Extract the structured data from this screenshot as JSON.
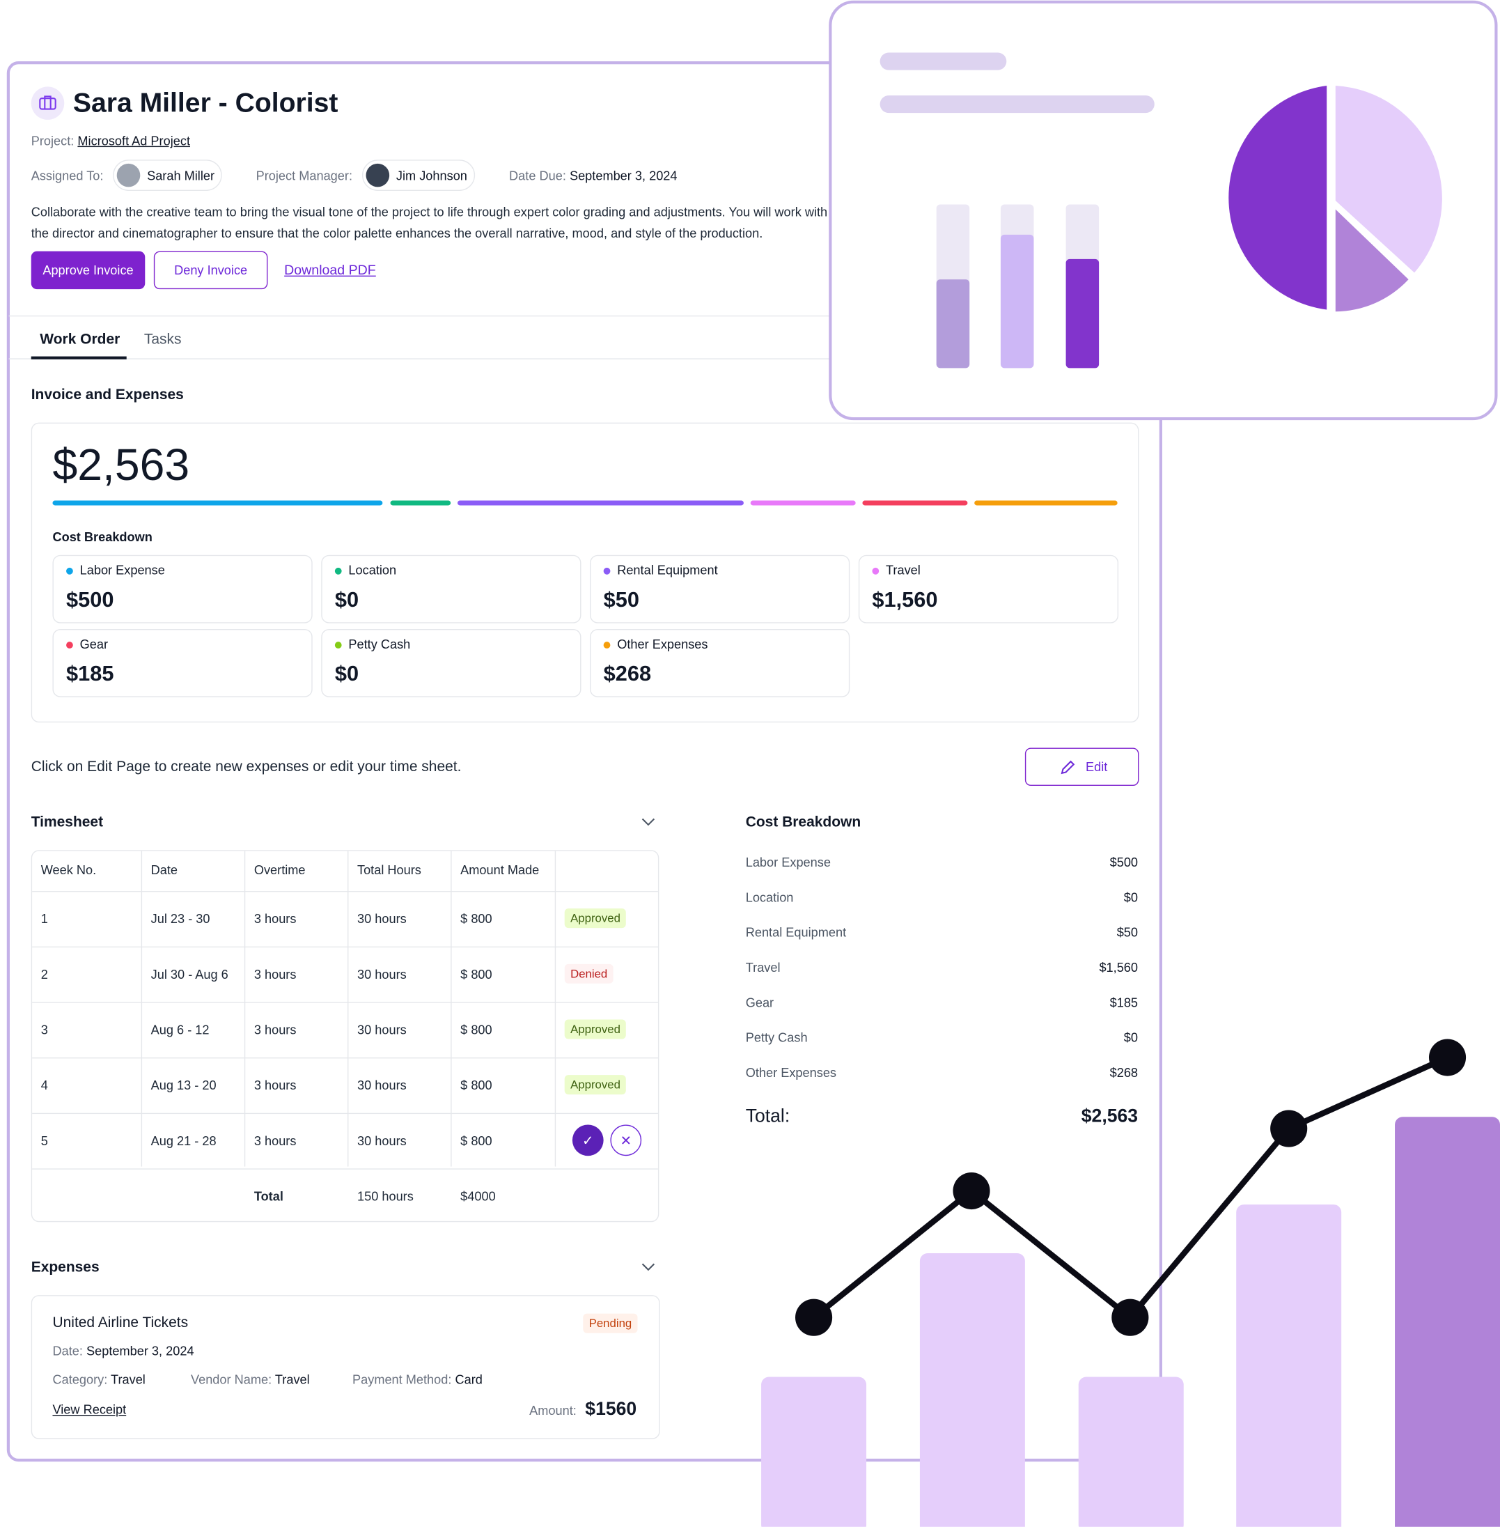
{
  "header": {
    "title": "Sara Miller - Colorist",
    "project_label": "Project:",
    "project": "Microsoft Ad Project",
    "assigned_label": "Assigned To:",
    "assigned": "Sarah Miller",
    "manager_label": "Project Manager:",
    "manager": "Jim Johnson",
    "due_label": "Date Due:",
    "due": "September 3, 2024",
    "description": "Collaborate with the creative team to bring the visual tone of the project to life through expert color grading and adjustments. You will work with the director and cinematographer to ensure that the color palette enhances the overall narrative, mood, and style of the production.",
    "actions": [
      "Approve Invoice",
      "Deny Invoice",
      "Download PDF"
    ]
  },
  "tabs": [
    "Work Order",
    "Tasks"
  ],
  "invoice": {
    "title": "Invoice and Expenses",
    "total": "$2,563",
    "breakdown_title": "Cost Breakdown",
    "items": [
      {
        "label": "Labor Expense",
        "value": "$500",
        "color": "#0ea5e9"
      },
      {
        "label": "Location",
        "value": "$0",
        "color": "#10b981"
      },
      {
        "label": "Rental Equipment",
        "value": "$50",
        "color": "#8b5cf6"
      },
      {
        "label": "Travel",
        "value": "$1,560",
        "color": "#e879f9"
      },
      {
        "label": "Gear",
        "value": "$185",
        "color": "#f43f5e"
      },
      {
        "label": "Petty Cash",
        "value": "$0",
        "color": "#84cc16"
      },
      {
        "label": "Other Expenses",
        "value": "$268",
        "color": "#f59e0b"
      }
    ]
  },
  "edit_note": "Click on Edit Page to create new expenses or edit your time sheet.",
  "edit_button": "Edit",
  "timesheet": {
    "title": "Timesheet",
    "columns": [
      "Week No.",
      "Date",
      "Overtime",
      "Total Hours",
      "Amount Made"
    ],
    "rows": [
      {
        "week": "1",
        "date": "Jul 23 - 30",
        "overtime": "3 hours",
        "hours": "30 hours",
        "amount": "$ 800",
        "status": "Approved"
      },
      {
        "week": "2",
        "date": "Jul 30 - Aug 6",
        "overtime": "3 hours",
        "hours": "30 hours",
        "amount": "$ 800",
        "status": "Denied"
      },
      {
        "week": "3",
        "date": "Aug 6 - 12",
        "overtime": "3 hours",
        "hours": "30 hours",
        "amount": "$ 800",
        "status": "Approved"
      },
      {
        "week": "4",
        "date": "Aug 13 - 20",
        "overtime": "3 hours",
        "hours": "30 hours",
        "amount": "$ 800",
        "status": "Approved"
      },
      {
        "week": "5",
        "date": "Aug 21 - 28",
        "overtime": "3 hours",
        "hours": "30 hours",
        "amount": "$ 800"
      }
    ],
    "total_label": "Total",
    "total_hours": "150 hours",
    "total_amount": "$4000"
  },
  "summary": {
    "title": "Cost Breakdown",
    "rows": [
      [
        "Labor Expense",
        "$500"
      ],
      [
        "Location",
        "$0"
      ],
      [
        "Rental Equipment",
        "$50"
      ],
      [
        "Travel",
        "$1,560"
      ],
      [
        "Gear",
        "$185"
      ],
      [
        "Petty Cash",
        "$0"
      ],
      [
        "Other Expenses",
        "$268"
      ]
    ],
    "total_label": "Total:",
    "total": "$2,563"
  },
  "expenses": {
    "title": "Expenses",
    "items": [
      {
        "title": "United Airline Tickets",
        "status": "Pending",
        "date_label": "Date:",
        "date": "September 3, 2024",
        "category_label": "Category:",
        "category": "Travel",
        "vendor_label": "Vendor Name:",
        "vendor": "Travel",
        "payment_label": "Payment Method:",
        "payment": "Card",
        "link": "View Receipt",
        "amount_label": "Amount:",
        "amount": "$1560"
      }
    ]
  }
}
